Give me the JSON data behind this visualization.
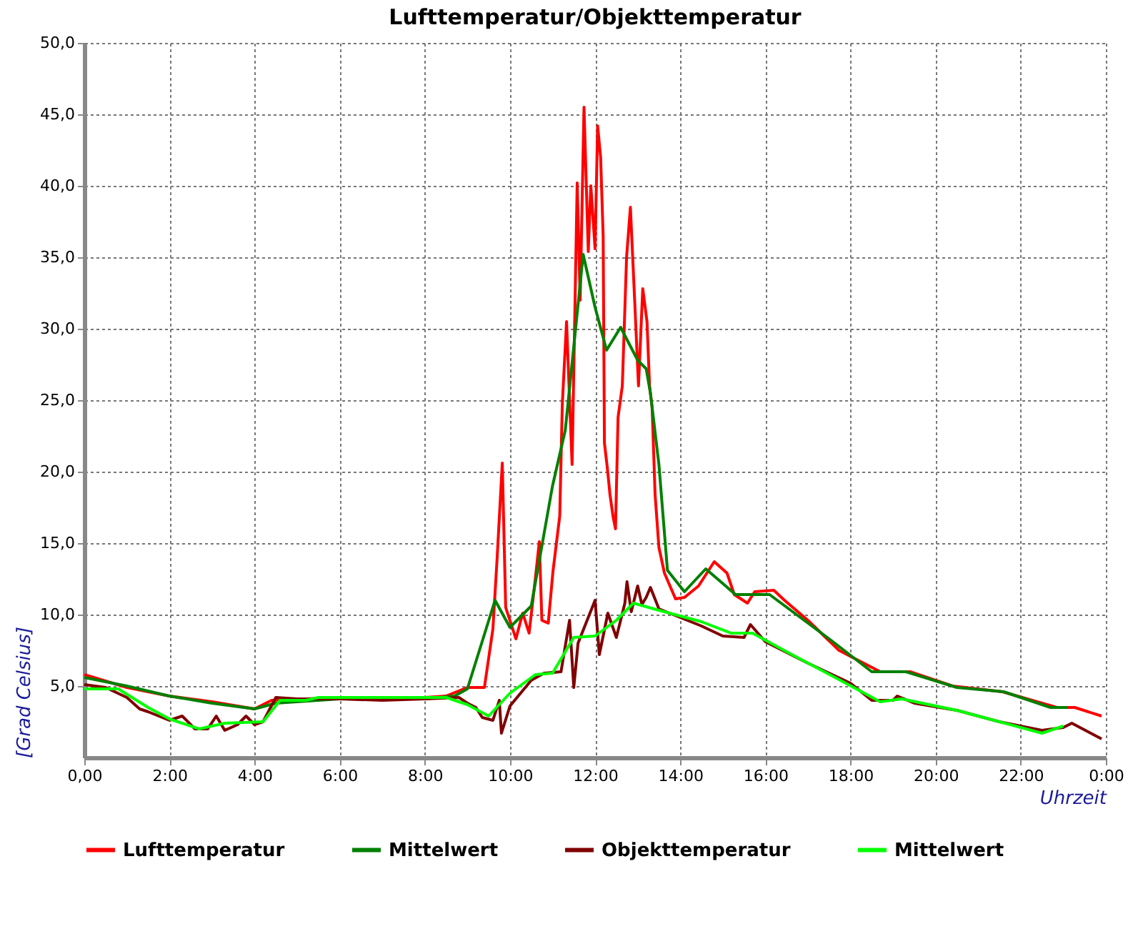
{
  "chart_data": {
    "type": "line",
    "title": "Lufttemperatur/Objekttemperatur",
    "xlabel": "Uhrzeit",
    "ylabel": "[Grad Celsius]",
    "xlim": [
      0,
      24
    ],
    "ylim": [
      0,
      50
    ],
    "xticks": [
      {
        "value": 0,
        "label": "0,00"
      },
      {
        "value": 2,
        "label": "2:00"
      },
      {
        "value": 4,
        "label": "4:00"
      },
      {
        "value": 6,
        "label": "6:00"
      },
      {
        "value": 8,
        "label": "8:00"
      },
      {
        "value": 10,
        "label": "10:00"
      },
      {
        "value": 12,
        "label": "12:00"
      },
      {
        "value": 14,
        "label": "14:00"
      },
      {
        "value": 16,
        "label": "16:00"
      },
      {
        "value": 18,
        "label": "18:00"
      },
      {
        "value": 20,
        "label": "20:00"
      },
      {
        "value": 22,
        "label": "22:00"
      },
      {
        "value": 24,
        "label": "0:00"
      }
    ],
    "yticks": [
      {
        "value": 5,
        "label": "5,0"
      },
      {
        "value": 10,
        "label": "10,0"
      },
      {
        "value": 15,
        "label": "15,0"
      },
      {
        "value": 20,
        "label": "20,0"
      },
      {
        "value": 25,
        "label": "25,0"
      },
      {
        "value": 30,
        "label": "30,0"
      },
      {
        "value": 35,
        "label": "35,0"
      },
      {
        "value": 40,
        "label": "40,0"
      },
      {
        "value": 45,
        "label": "45,0"
      },
      {
        "value": 50,
        "label": "50,0"
      }
    ],
    "grid": true,
    "legend": "bottom",
    "series": [
      {
        "name": "Lufttemperatur",
        "color": "#ff0000",
        "x": [
          0,
          1,
          2,
          3,
          4,
          4.4,
          6,
          8,
          8.5,
          9,
          9.4,
          9.6,
          9.7,
          9.82,
          9.9,
          10.14,
          10.3,
          10.45,
          10.6,
          10.69,
          10.75,
          10.9,
          11.01,
          11.17,
          11.23,
          11.33,
          11.46,
          11.58,
          11.65,
          11.74,
          11.84,
          11.9,
          12.0,
          12.06,
          12.13,
          12.19,
          12.22,
          12.29,
          12.35,
          12.42,
          12.48,
          12.54,
          12.64,
          12.74,
          12.83,
          12.93,
          13.02,
          13.12,
          13.22,
          13.28,
          13.34,
          13.41,
          13.5,
          13.63,
          13.89,
          14.1,
          14.43,
          14.8,
          15.1,
          15.27,
          15.58,
          15.75,
          16.2,
          16.45,
          17.0,
          17.73,
          18.05,
          18.7,
          19.4,
          20.4,
          21.57,
          22.85,
          23.27,
          23.9
        ],
        "values": [
          5.8,
          4.9,
          4.3,
          3.9,
          3.4,
          4.0,
          4.2,
          4.2,
          4.3,
          4.9,
          4.9,
          9.0,
          14,
          20.6,
          10.5,
          8.3,
          10.1,
          8.7,
          12.6,
          15.1,
          9.6,
          9.4,
          13,
          16.9,
          24.7,
          30.5,
          20.5,
          40.2,
          32,
          45.5,
          35.4,
          40,
          35.6,
          44.2,
          42,
          36.5,
          22,
          20.2,
          18.4,
          16.9,
          16,
          23.8,
          26,
          35,
          38.5,
          32,
          26,
          32.8,
          30.5,
          26,
          24.5,
          18.4,
          14.7,
          12.9,
          11.1,
          11.2,
          12.0,
          13.7,
          12.9,
          11.4,
          10.8,
          11.6,
          11.7,
          11.0,
          9.6,
          7.5,
          7.0,
          6.0,
          6.0,
          5.0,
          4.6,
          3.5,
          3.5,
          2.9
        ]
      },
      {
        "name": "Mittelwert",
        "color": "#008000",
        "x": [
          0,
          1,
          2,
          3,
          4,
          4.5,
          6,
          8,
          8.7,
          9.0,
          9.65,
          10.0,
          10.5,
          11.0,
          11.3,
          11.72,
          12.0,
          12.27,
          12.6,
          13.0,
          13.2,
          13.3,
          13.5,
          13.7,
          14.1,
          14.6,
          15.3,
          16.1,
          17.5,
          18.5,
          19.3,
          20.5,
          21.6,
          22.7,
          23.1
        ],
        "values": [
          5.6,
          5.0,
          4.3,
          3.8,
          3.4,
          3.8,
          4.1,
          4.1,
          4.3,
          4.8,
          11.0,
          9.1,
          10.6,
          19,
          22.9,
          35.2,
          31.5,
          28.5,
          30.1,
          27.8,
          27.2,
          25.5,
          20.5,
          13.1,
          11.6,
          13.2,
          11.4,
          11.4,
          8.3,
          6.0,
          6.0,
          4.9,
          4.6,
          3.5,
          3.5
        ]
      },
      {
        "name": "Objekttemperatur",
        "color": "#800000",
        "x": [
          0,
          0.5,
          1,
          1.3,
          1.5,
          2,
          2.3,
          2.6,
          2.9,
          3.1,
          3.3,
          3.6,
          3.8,
          4.0,
          4.2,
          4.5,
          5,
          6,
          7,
          8,
          8.8,
          9.0,
          9.2,
          9.35,
          9.6,
          9.75,
          9.8,
          10.0,
          10.5,
          10.8,
          11.2,
          11.4,
          11.5,
          11.6,
          12.0,
          12.1,
          12.3,
          12.5,
          12.7,
          12.75,
          12.85,
          13.0,
          13.1,
          13.2,
          13.3,
          13.5,
          14,
          14.5,
          15,
          15.5,
          15.65,
          16,
          17,
          18,
          18.5,
          19.0,
          19.1,
          19.5,
          20.5,
          21.5,
          22.5,
          23,
          23.2,
          23.9
        ],
        "values": [
          5.1,
          4.9,
          4.2,
          3.4,
          3.2,
          2.6,
          2.9,
          2.0,
          2.0,
          2.9,
          1.9,
          2.3,
          2.9,
          2.3,
          2.5,
          4.2,
          4.1,
          4.1,
          4.0,
          4.1,
          4.2,
          3.8,
          3.5,
          2.8,
          2.6,
          4.0,
          1.7,
          3.6,
          5.4,
          5.9,
          6.0,
          9.6,
          4.9,
          8.0,
          11,
          7.2,
          10.1,
          8.4,
          10.8,
          12.3,
          10.2,
          12.0,
          10.7,
          11.2,
          11.9,
          10.4,
          9.8,
          9.2,
          8.5,
          8.4,
          9.3,
          8.1,
          6.6,
          5.2,
          4.0,
          4.0,
          4.3,
          3.8,
          3.3,
          2.5,
          1.9,
          2.1,
          2.4,
          1.3
        ]
      },
      {
        "name": "Mittelwert",
        "color": "#00ff00",
        "x": [
          0,
          0.8,
          1.5,
          2,
          2.7,
          3.3,
          4.2,
          4.6,
          5.2,
          5.5,
          8.5,
          9.0,
          9.5,
          10.0,
          10.6,
          11.0,
          11.5,
          12,
          12.5,
          12.9,
          13.5,
          14.5,
          15.2,
          15.7,
          16.5,
          17.7,
          18.7,
          19.2,
          20.5,
          22.5,
          23.0
        ],
        "values": [
          4.8,
          4.8,
          3.5,
          2.7,
          2.0,
          2.4,
          2.5,
          4.0,
          4.0,
          4.2,
          4.2,
          3.7,
          2.9,
          4.5,
          5.8,
          5.9,
          8.4,
          8.5,
          9.6,
          10.8,
          10.3,
          9.5,
          8.7,
          8.7,
          7.4,
          5.5,
          3.9,
          4.1,
          3.3,
          1.7,
          2.2
        ]
      }
    ]
  }
}
